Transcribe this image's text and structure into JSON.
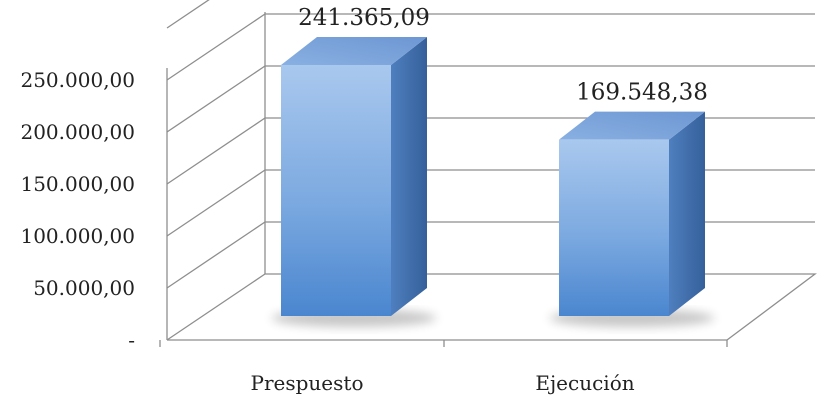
{
  "chart_data": {
    "type": "bar",
    "style": "3d-column",
    "categories": [
      "Prespuesto",
      "Ejecución"
    ],
    "values": [
      241365.09,
      169548.38
    ],
    "data_labels": [
      "241.365,09",
      "169.548,38"
    ],
    "ylim": [
      0,
      300000
    ],
    "y_ticks": [
      {
        "value": 0,
        "label": "-"
      },
      {
        "value": 50000,
        "label": "50.000,00"
      },
      {
        "value": 100000,
        "label": "100.000,00"
      },
      {
        "value": 150000,
        "label": "150.000,00"
      },
      {
        "value": 200000,
        "label": "200.000,00"
      },
      {
        "value": 250000,
        "label": "250.000,00"
      }
    ],
    "grid": true,
    "legend": "none",
    "bar_color": "#6a9bd6",
    "bar_color_light": "#a9c8ee",
    "bar_color_dark": "#3e6aa6",
    "grid_color": "#8e8e8e"
  }
}
